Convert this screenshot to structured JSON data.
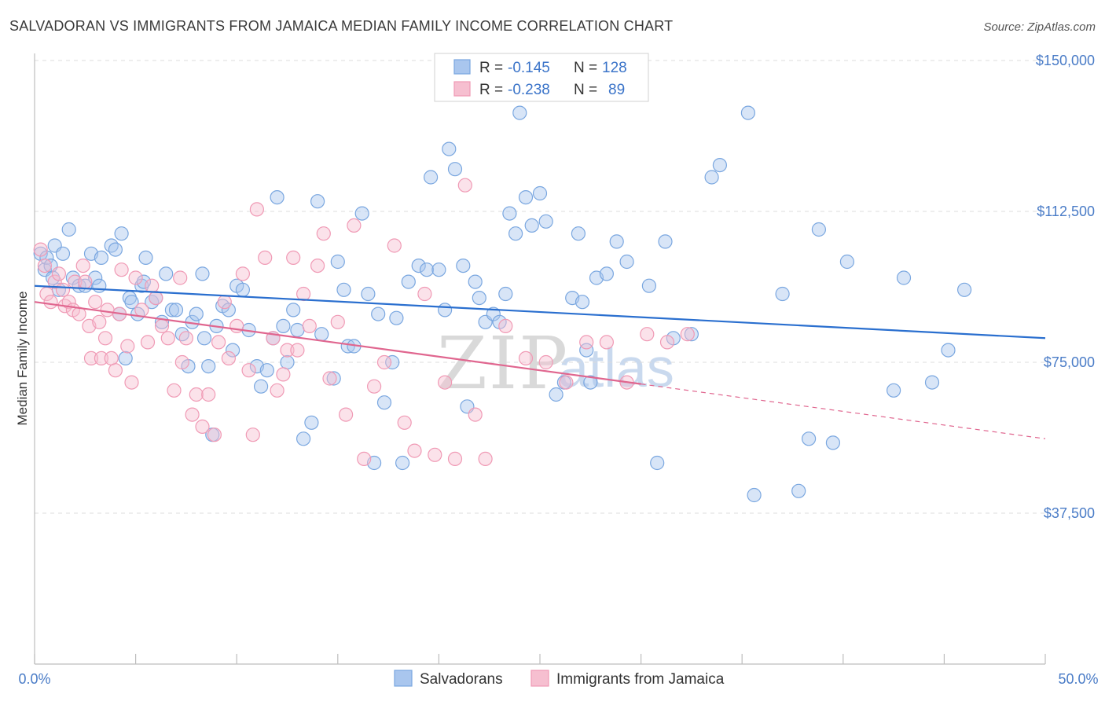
{
  "chart_data": {
    "type": "scatter",
    "title": "SALVADORAN VS IMMIGRANTS FROM JAMAICA MEDIAN FAMILY INCOME CORRELATION CHART",
    "source": "Source: ZipAtlas.com",
    "xlabel": "",
    "ylabel": "Median Family Income",
    "xlim": [
      0,
      50
    ],
    "ylim": [
      0,
      155000
    ],
    "x_tick_labels": [
      "0.0%",
      "50.0%"
    ],
    "y_ticks": [
      {
        "value": 150000,
        "label": "$150,000"
      },
      {
        "value": 112500,
        "label": "$112,500"
      },
      {
        "value": 75000,
        "label": "$75,000"
      },
      {
        "value": 37500,
        "label": "$37,500"
      }
    ],
    "grid": true,
    "legend_position": "top-center",
    "watermark": {
      "zip": "ZIP",
      "atlas": "atlas"
    },
    "stats": [
      {
        "r_label": "R =",
        "r_value": "-0.145",
        "n_label": "N =",
        "n_value": "128"
      },
      {
        "r_label": "R =",
        "r_value": "-0.238",
        "n_label": "N =",
        "n_value": "89"
      }
    ],
    "series": [
      {
        "name": "Salvadorans",
        "color": "#7aa7e0",
        "fill": "#a9c6ee",
        "line_color": "#2a6fcf",
        "trend": {
          "x0": 0,
          "y0": 94000,
          "x1": 50,
          "y1": 81000,
          "dash_from": null
        },
        "points": [
          [
            0.3,
            102000
          ],
          [
            0.5,
            98000
          ],
          [
            0.6,
            101000
          ],
          [
            0.8,
            99000
          ],
          [
            0.9,
            96000
          ],
          [
            1.0,
            104000
          ],
          [
            1.2,
            93000
          ],
          [
            1.4,
            102000
          ],
          [
            1.7,
            108000
          ],
          [
            1.9,
            96000
          ],
          [
            2.2,
            94000
          ],
          [
            2.5,
            94000
          ],
          [
            2.8,
            102000
          ],
          [
            3.0,
            96000
          ],
          [
            3.2,
            94000
          ],
          [
            3.3,
            101000
          ],
          [
            3.8,
            104000
          ],
          [
            4.0,
            103000
          ],
          [
            4.2,
            87000
          ],
          [
            4.3,
            107000
          ],
          [
            4.5,
            76000
          ],
          [
            4.7,
            91000
          ],
          [
            4.8,
            90000
          ],
          [
            5.1,
            87000
          ],
          [
            5.3,
            94000
          ],
          [
            5.4,
            95000
          ],
          [
            5.5,
            101000
          ],
          [
            5.8,
            90000
          ],
          [
            6.0,
            91000
          ],
          [
            6.3,
            85000
          ],
          [
            6.5,
            97000
          ],
          [
            6.8,
            88000
          ],
          [
            7.0,
            88000
          ],
          [
            7.3,
            82000
          ],
          [
            7.6,
            74000
          ],
          [
            7.8,
            85000
          ],
          [
            8.0,
            87000
          ],
          [
            8.3,
            97000
          ],
          [
            8.4,
            81000
          ],
          [
            8.6,
            74000
          ],
          [
            8.8,
            57000
          ],
          [
            9.0,
            84000
          ],
          [
            9.3,
            89000
          ],
          [
            9.6,
            88000
          ],
          [
            9.8,
            78000
          ],
          [
            10.0,
            94000
          ],
          [
            10.3,
            93000
          ],
          [
            10.6,
            83000
          ],
          [
            11.0,
            74000
          ],
          [
            11.2,
            69000
          ],
          [
            11.5,
            73000
          ],
          [
            11.8,
            81000
          ],
          [
            12.0,
            116000
          ],
          [
            12.3,
            84000
          ],
          [
            12.5,
            75000
          ],
          [
            12.8,
            88000
          ],
          [
            13.0,
            83000
          ],
          [
            13.3,
            56000
          ],
          [
            13.7,
            60000
          ],
          [
            14.0,
            115000
          ],
          [
            14.2,
            82000
          ],
          [
            14.8,
            71000
          ],
          [
            15.0,
            100000
          ],
          [
            15.3,
            93000
          ],
          [
            15.5,
            79000
          ],
          [
            15.8,
            79000
          ],
          [
            16.2,
            112000
          ],
          [
            16.5,
            92000
          ],
          [
            16.8,
            50000
          ],
          [
            17.0,
            87000
          ],
          [
            17.3,
            65000
          ],
          [
            17.7,
            75000
          ],
          [
            17.9,
            86000
          ],
          [
            18.2,
            50000
          ],
          [
            18.5,
            95000
          ],
          [
            19.0,
            99000
          ],
          [
            19.4,
            98000
          ],
          [
            19.6,
            121000
          ],
          [
            20.0,
            98000
          ],
          [
            20.3,
            88000
          ],
          [
            20.5,
            128000
          ],
          [
            20.8,
            123000
          ],
          [
            21.2,
            99000
          ],
          [
            21.4,
            64000
          ],
          [
            21.8,
            95000
          ],
          [
            22.0,
            91000
          ],
          [
            22.3,
            85000
          ],
          [
            22.7,
            87000
          ],
          [
            23.0,
            85000
          ],
          [
            23.3,
            92000
          ],
          [
            23.5,
            112000
          ],
          [
            23.8,
            107000
          ],
          [
            24.0,
            137000
          ],
          [
            24.3,
            116000
          ],
          [
            24.6,
            109000
          ],
          [
            25.0,
            117000
          ],
          [
            25.3,
            110000
          ],
          [
            25.8,
            67000
          ],
          [
            26.2,
            70000
          ],
          [
            26.6,
            91000
          ],
          [
            26.9,
            107000
          ],
          [
            27.1,
            90000
          ],
          [
            27.3,
            78000
          ],
          [
            27.5,
            70000
          ],
          [
            27.8,
            96000
          ],
          [
            28.3,
            97000
          ],
          [
            28.8,
            105000
          ],
          [
            29.3,
            100000
          ],
          [
            30.4,
            94000
          ],
          [
            30.8,
            50000
          ],
          [
            31.2,
            105000
          ],
          [
            31.6,
            81000
          ],
          [
            32.5,
            82000
          ],
          [
            33.5,
            121000
          ],
          [
            33.9,
            124000
          ],
          [
            35.3,
            137000
          ],
          [
            35.6,
            42000
          ],
          [
            37.0,
            92000
          ],
          [
            37.8,
            43000
          ],
          [
            38.3,
            56000
          ],
          [
            38.8,
            108000
          ],
          [
            39.5,
            55000
          ],
          [
            40.2,
            100000
          ],
          [
            42.5,
            68000
          ],
          [
            43.0,
            96000
          ],
          [
            44.4,
            70000
          ],
          [
            45.2,
            78000
          ],
          [
            46.0,
            93000
          ]
        ]
      },
      {
        "name": "Immigrants from Jamaica",
        "color": "#f09ab5",
        "fill": "#f6bfd0",
        "line_color": "#e0668f",
        "trend": {
          "x0": 0,
          "y0": 90000,
          "x1": 50,
          "y1": 56000,
          "dash_from": 30
        },
        "points": [
          [
            0.3,
            103000
          ],
          [
            0.5,
            99000
          ],
          [
            0.6,
            92000
          ],
          [
            0.8,
            90000
          ],
          [
            1.0,
            95000
          ],
          [
            1.2,
            97000
          ],
          [
            1.4,
            93000
          ],
          [
            1.5,
            89000
          ],
          [
            1.7,
            90000
          ],
          [
            1.9,
            88000
          ],
          [
            2.0,
            95000
          ],
          [
            2.2,
            87000
          ],
          [
            2.4,
            99000
          ],
          [
            2.5,
            95000
          ],
          [
            2.7,
            84000
          ],
          [
            2.8,
            76000
          ],
          [
            3.0,
            90000
          ],
          [
            3.2,
            85000
          ],
          [
            3.3,
            76000
          ],
          [
            3.5,
            81000
          ],
          [
            3.6,
            88000
          ],
          [
            3.8,
            76000
          ],
          [
            4.0,
            73000
          ],
          [
            4.2,
            87000
          ],
          [
            4.3,
            98000
          ],
          [
            4.6,
            79000
          ],
          [
            4.8,
            70000
          ],
          [
            5.0,
            96000
          ],
          [
            5.3,
            88000
          ],
          [
            5.6,
            80000
          ],
          [
            5.8,
            94000
          ],
          [
            6.0,
            91000
          ],
          [
            6.3,
            84000
          ],
          [
            6.6,
            81000
          ],
          [
            6.9,
            68000
          ],
          [
            7.2,
            96000
          ],
          [
            7.3,
            75000
          ],
          [
            7.5,
            81000
          ],
          [
            7.8,
            62000
          ],
          [
            8.0,
            67000
          ],
          [
            8.3,
            59000
          ],
          [
            8.6,
            67000
          ],
          [
            8.9,
            57000
          ],
          [
            9.1,
            80000
          ],
          [
            9.4,
            90000
          ],
          [
            9.6,
            76000
          ],
          [
            10.0,
            84000
          ],
          [
            10.3,
            97000
          ],
          [
            10.6,
            73000
          ],
          [
            10.8,
            57000
          ],
          [
            11.0,
            113000
          ],
          [
            11.4,
            101000
          ],
          [
            11.8,
            81000
          ],
          [
            12.0,
            68000
          ],
          [
            12.3,
            72000
          ],
          [
            12.5,
            78000
          ],
          [
            12.8,
            101000
          ],
          [
            13.0,
            78000
          ],
          [
            13.3,
            92000
          ],
          [
            13.6,
            84000
          ],
          [
            14.0,
            99000
          ],
          [
            14.3,
            107000
          ],
          [
            14.6,
            71000
          ],
          [
            15.0,
            85000
          ],
          [
            15.4,
            62000
          ],
          [
            15.8,
            109000
          ],
          [
            16.3,
            51000
          ],
          [
            16.8,
            69000
          ],
          [
            17.3,
            75000
          ],
          [
            17.8,
            104000
          ],
          [
            18.3,
            60000
          ],
          [
            18.8,
            53000
          ],
          [
            19.3,
            92000
          ],
          [
            19.8,
            52000
          ],
          [
            20.3,
            70000
          ],
          [
            20.8,
            51000
          ],
          [
            21.3,
            119000
          ],
          [
            21.8,
            62000
          ],
          [
            22.3,
            51000
          ],
          [
            23.3,
            84000
          ],
          [
            24.3,
            76000
          ],
          [
            25.3,
            75000
          ],
          [
            26.3,
            70000
          ],
          [
            27.3,
            80000
          ],
          [
            28.3,
            80000
          ],
          [
            29.3,
            70000
          ],
          [
            30.3,
            82000
          ],
          [
            31.3,
            80000
          ],
          [
            32.3,
            82000
          ]
        ]
      }
    ]
  },
  "legend_bottom": [
    {
      "label": "Salvadorans"
    },
    {
      "label": "Immigrants from Jamaica"
    }
  ]
}
